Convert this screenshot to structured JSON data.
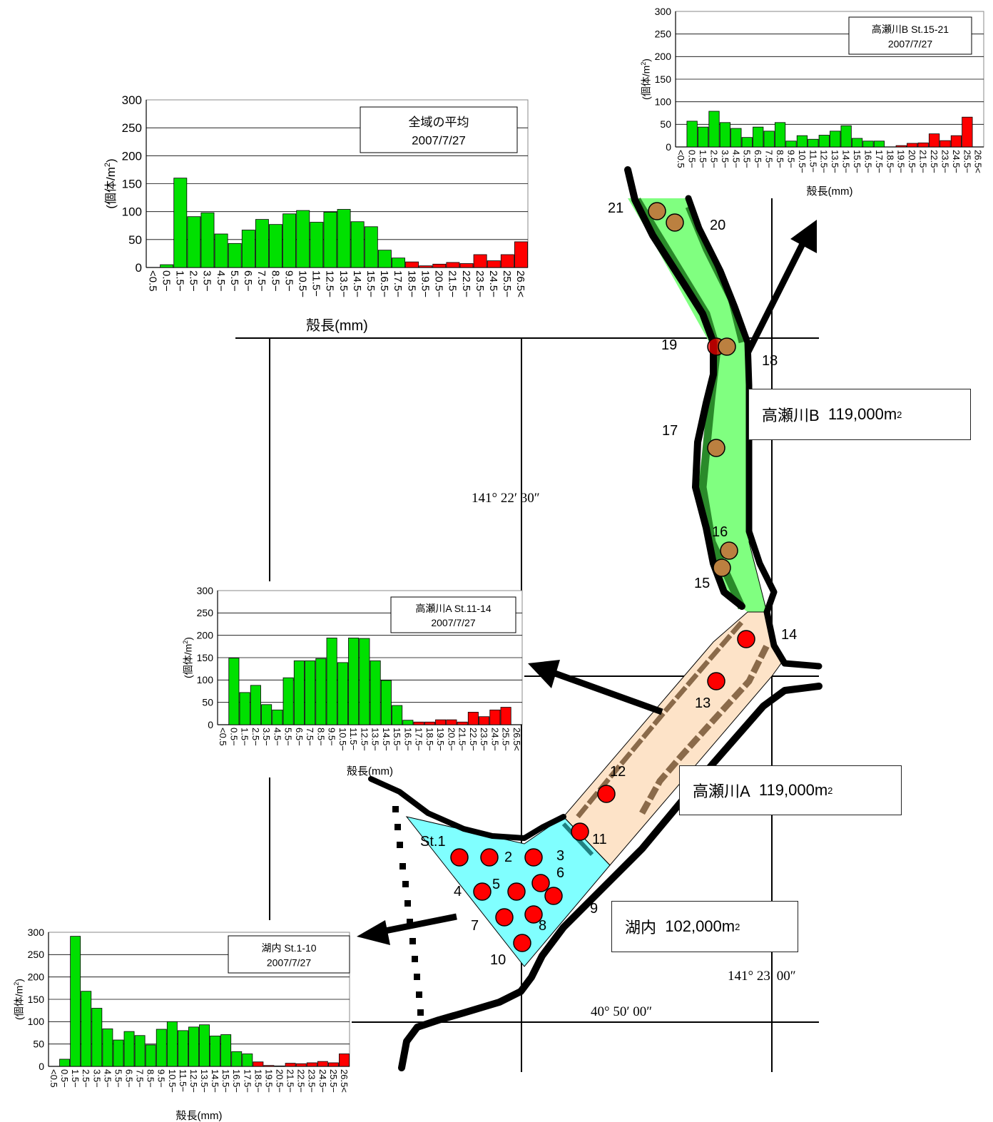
{
  "areas": [
    {
      "id": "b",
      "name": "高瀬川B",
      "area": "119,000m",
      "unit_sup": "2"
    },
    {
      "id": "a",
      "name": "高瀬川A",
      "area": "119,000m",
      "unit_sup": "2"
    },
    {
      "id": "lake",
      "name": "湖内",
      "area": "102,000m",
      "unit_sup": "2"
    }
  ],
  "coordinates": {
    "lon1": "141° 22′ 30″",
    "lon2": "141° 23′ 00″",
    "lat1": "40° 50′ 00″"
  },
  "stations": {
    "st1": "St.1",
    "s2": "2",
    "s3": "3",
    "s4": "4",
    "s5": "5",
    "s6": "6",
    "s7": "7",
    "s8": "8",
    "s9": "9",
    "s10": "10",
    "s11": "11",
    "s12": "12",
    "s13": "13",
    "s14": "14",
    "s15": "15",
    "s16": "16",
    "s17": "17",
    "s18": "18",
    "s19": "19",
    "s20": "20",
    "s21": "21"
  },
  "colors": {
    "lake_fill": "#80ffff",
    "river_a_fill": "#fde3c8",
    "river_b_fill": "#80ff80",
    "river_b_edge": "#2a8a2a",
    "river_a_edge": "#8a6a4a",
    "station_red": "#ff0000",
    "station_brown": "#bb8040",
    "bar_green": "#00e000",
    "bar_red": "#ff0000"
  },
  "chart_data": [
    {
      "id": "overall",
      "type": "bar",
      "title": "全域の平均",
      "date": "2007/7/27",
      "ylabel": "(個体/m²)",
      "ylabel_main": "(個体/m",
      "ylabel_sup": "2",
      "ylabel_end": ")",
      "xlabel": "殻長(mm)",
      "ylim": [
        0,
        300
      ],
      "yticks": [
        0,
        50,
        100,
        150,
        200,
        250,
        300
      ],
      "categories": [
        "<0.5",
        "0.5−",
        "1.5−",
        "2.5−",
        "3.5−",
        "4.5−",
        "5.5−",
        "6.5−",
        "7.5−",
        "8.5−",
        "9.5−",
        "10.5−",
        "11.5−",
        "12.5−",
        "13.5−",
        "14.5−",
        "15.5−",
        "16.5−",
        "17.5−",
        "18.5−",
        "19.5−",
        "20.5−",
        "21.5−",
        "22.5−",
        "23.5−",
        "24.5−",
        "25.5−",
        "26.5<"
      ],
      "values": [
        0,
        5,
        160,
        91,
        98,
        60,
        43,
        67,
        86,
        77,
        96,
        102,
        81,
        99,
        104,
        82,
        73,
        31,
        17,
        10,
        3,
        6,
        9,
        7,
        23,
        12,
        23,
        46
      ],
      "red_from": 19
    },
    {
      "id": "b",
      "type": "bar",
      "title": "高瀬川B  St.15-21",
      "date": "2007/7/27",
      "ylabel": "(個体/m²)",
      "ylabel_main": "(個体/m",
      "ylabel_sup": "2",
      "ylabel_end": ")",
      "xlabel": "殻長(mm)",
      "ylim": [
        0,
        300
      ],
      "yticks": [
        0,
        50,
        100,
        150,
        200,
        250,
        300
      ],
      "categories": [
        "<0.5",
        "0.5−",
        "1.5−",
        "2.5−",
        "3.5−",
        "4.5−",
        "5.5−",
        "6.5−",
        "7.5−",
        "8.5−",
        "9.5−",
        "10.5−",
        "11.5−",
        "12.5−",
        "13.5−",
        "14.5−",
        "15.5−",
        "16.5−",
        "17.5−",
        "18.5−",
        "19.5−",
        "20.5−",
        "21.5−",
        "22.5−",
        "23.5−",
        "24.5−",
        "25.5−",
        "26.5<"
      ],
      "values": [
        0,
        57,
        44,
        79,
        54,
        41,
        21,
        44,
        35,
        54,
        13,
        25,
        17,
        26,
        35,
        47,
        19,
        13,
        13,
        0,
        3,
        8,
        9,
        29,
        14,
        25,
        66,
        0
      ],
      "red_from": 19
    },
    {
      "id": "a",
      "type": "bar",
      "title": "高瀬川A  St.11-14",
      "date": "2007/7/27",
      "ylabel": "(個体/m²)",
      "ylabel_main": "(個体/m",
      "ylabel_sup": "2",
      "ylabel_end": ")",
      "xlabel": "殻長(mm)",
      "ylim": [
        0,
        300
      ],
      "yticks": [
        0,
        50,
        100,
        150,
        200,
        250,
        300
      ],
      "categories": [
        "<0.5",
        "0.5−",
        "1.5−",
        "2.5−",
        "3.5−",
        "4.5−",
        "5.5−",
        "6.5−",
        "7.5−",
        "8.5−",
        "9.5−",
        "10.5−",
        "11.5−",
        "12.5−",
        "13.5−",
        "14.5−",
        "15.5−",
        "16.5−",
        "17.5−",
        "18.5−",
        "19.5−",
        "20.5−",
        "21.5−",
        "22.5−",
        "23.5−",
        "24.5−",
        "25.5−",
        "26.5<"
      ],
      "values": [
        0,
        149,
        72,
        88,
        45,
        33,
        105,
        143,
        143,
        148,
        194,
        139,
        194,
        193,
        143,
        99,
        43,
        10,
        6,
        6,
        11,
        11,
        6,
        28,
        18,
        33,
        39,
        0
      ],
      "red_from": 18
    },
    {
      "id": "lake",
      "type": "bar",
      "title": "湖内  St.1-10",
      "date": "2007/7/27",
      "ylabel": "(個体/m²)",
      "ylabel_main": "(個体/m",
      "ylabel_sup": "2",
      "ylabel_end": ")",
      "xlabel": "殻長(mm)",
      "ylim": [
        0,
        300
      ],
      "yticks": [
        0,
        50,
        100,
        150,
        200,
        250,
        300
      ],
      "categories": [
        "<0.5",
        "0.5−",
        "1.5−",
        "2.5−",
        "3.5−",
        "4.5−",
        "5.5−",
        "6.5−",
        "7.5−",
        "8.5−",
        "9.5−",
        "10.5−",
        "11.5−",
        "12.5−",
        "13.5−",
        "14.5−",
        "15.5−",
        "16.5−",
        "17.5−",
        "18.5−",
        "19.5−",
        "20.5−",
        "21.5−",
        "22.5−",
        "23.5−",
        "24.5−",
        "25.5−",
        "26.5<"
      ],
      "values": [
        0,
        16,
        291,
        168,
        130,
        84,
        59,
        78,
        69,
        48,
        83,
        100,
        80,
        88,
        93,
        68,
        71,
        33,
        28,
        10,
        2,
        1,
        7,
        6,
        8,
        11,
        8,
        28
      ],
      "red_from": 19
    }
  ]
}
